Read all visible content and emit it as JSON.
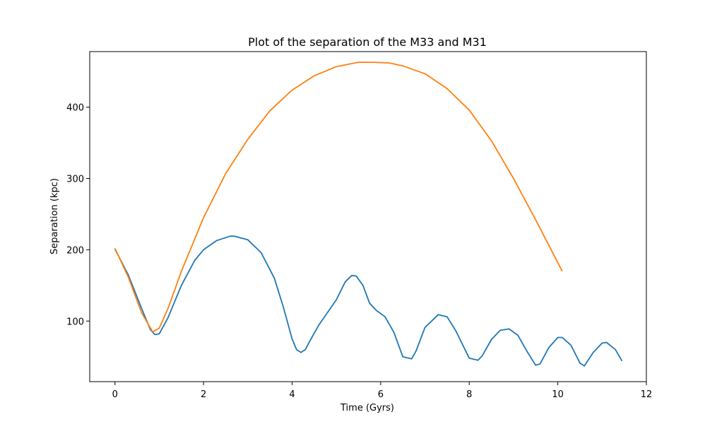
{
  "chart_data": {
    "type": "line",
    "title": "Plot of the separation of the M33 and M31",
    "xlabel": "Time (Gyrs)",
    "ylabel": "Separation (kpc)",
    "xlim": [
      -0.57,
      12.0
    ],
    "ylim": [
      15,
      478
    ],
    "xticks": [
      0,
      2,
      4,
      6,
      8,
      10,
      12
    ],
    "yticks": [
      100,
      200,
      300,
      400
    ],
    "grid": false,
    "legend": "none",
    "series": [
      {
        "color": "#1f77b4",
        "x": [
          0,
          0.3,
          0.6,
          0.8,
          0.9,
          1.0,
          1.2,
          1.5,
          1.8,
          2.0,
          2.3,
          2.6,
          2.7,
          3.0,
          3.3,
          3.6,
          3.8,
          4.0,
          4.1,
          4.2,
          4.3,
          4.4,
          4.6,
          4.8,
          5.0,
          5.2,
          5.35,
          5.45,
          5.6,
          5.75,
          5.9,
          6.1,
          6.3,
          6.5,
          6.7,
          6.8,
          7.0,
          7.3,
          7.5,
          7.7,
          8.0,
          8.2,
          8.3,
          8.5,
          8.7,
          8.9,
          9.1,
          9.3,
          9.5,
          9.6,
          9.8,
          10.0,
          10.1,
          10.3,
          10.5,
          10.6,
          10.8,
          11.0,
          11.1,
          11.3,
          11.45
        ],
        "y": [
          201,
          165,
          118,
          88,
          81,
          82,
          105,
          150,
          185,
          200,
          213,
          219,
          219,
          214,
          196,
          160,
          120,
          75,
          60,
          56,
          60,
          72,
          94,
          112,
          130,
          155,
          164,
          163,
          150,
          125,
          115,
          106,
          84,
          50,
          47,
          58,
          91,
          109,
          106,
          86,
          48,
          45,
          52,
          74,
          87,
          89,
          80,
          58,
          38,
          40,
          63,
          77,
          77,
          66,
          41,
          37,
          56,
          69,
          70,
          60,
          44
        ]
      },
      {
        "color": "#ff7f0e",
        "x": [
          0,
          0.3,
          0.6,
          0.85,
          1.0,
          1.2,
          1.5,
          1.8,
          2.0,
          2.5,
          3.0,
          3.5,
          4.0,
          4.5,
          5.0,
          5.5,
          5.85,
          6.2,
          6.5,
          7.0,
          7.5,
          8.0,
          8.5,
          9.0,
          9.5,
          10.0,
          10.1
        ],
        "y": [
          202,
          162,
          112,
          85,
          90,
          118,
          170,
          215,
          245,
          307,
          355,
          395,
          424,
          444,
          457,
          463,
          463,
          462,
          458,
          447,
          426,
          396,
          353,
          300,
          242,
          182,
          170
        ]
      }
    ]
  }
}
